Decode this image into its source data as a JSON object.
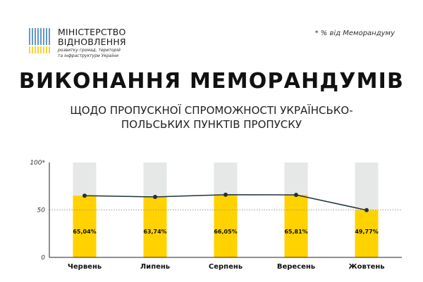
{
  "header": {
    "logo_line1": "МІНІСТЕРСТВО",
    "logo_line2": "ВІДНОВЛЕННЯ",
    "logo_sub1": "розвитку громад, територій",
    "logo_sub2": "та інфраструктури України",
    "note": "* % від Меморандуму"
  },
  "chart_data": {
    "type": "bar",
    "title": "ВИКОНАННЯ МЕМОРАНДУМІВ",
    "subtitle": "ЩОДО ПРОПУСКНОЇ СПРОМОЖНОСТІ УКРАЇНСЬКО-ПОЛЬСЬКИХ ПУНКТІВ ПРОПУСКУ",
    "categories": [
      "Червень",
      "Липень",
      "Серпень",
      "Вересень",
      "Жовтень"
    ],
    "values": [
      65.04,
      63.74,
      66.05,
      65.81,
      49.77
    ],
    "labels": [
      "65,04%",
      "63,74%",
      "66,05%",
      "65,81%",
      "49,77%"
    ],
    "ylim": [
      0,
      100
    ],
    "yticks": [
      {
        "value": 0,
        "label": "0"
      },
      {
        "value": 50,
        "label": "50"
      },
      {
        "value": 100,
        "label": "100*"
      }
    ],
    "reference_line": 50,
    "colors": {
      "bar": "#ffd200",
      "bar_background": "#e6e8e8",
      "line": "#21323b",
      "marker": "#21323b",
      "reference": "#9a9a9a"
    }
  }
}
